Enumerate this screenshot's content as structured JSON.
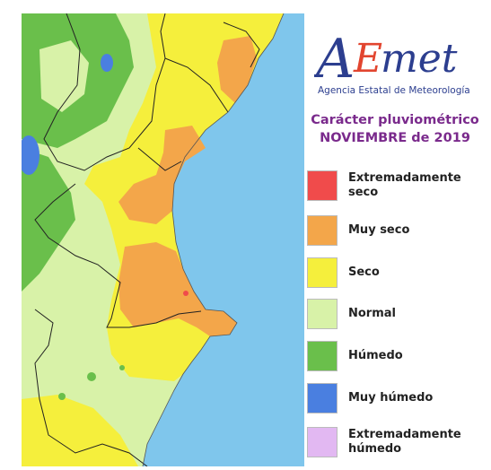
{
  "logo": {
    "letters": [
      "A",
      "E",
      "met"
    ],
    "subtitle": "Agencia Estatal de Meteorología"
  },
  "title_line1": "Carácter pluviométrico",
  "title_line2": "NOVIEMBRE de 2019",
  "legend": [
    {
      "label": "Extremadamente seco",
      "color": "#f04b4b"
    },
    {
      "label": "Muy seco",
      "color": "#f3a64a"
    },
    {
      "label": "Seco",
      "color": "#f5ef3c"
    },
    {
      "label": "Normal",
      "color": "#d8f2a8"
    },
    {
      "label": "Húmedo",
      "color": "#6abf4b"
    },
    {
      "label": "Muy húmedo",
      "color": "#4a7fe0"
    },
    {
      "label": "Extremadamente húmedo",
      "color": "#e2b8f2"
    }
  ],
  "map_colors": {
    "sea": "#7fc6ec",
    "very_dry": "#f3a64a",
    "dry": "#f5ef3c",
    "normal": "#d8f2a8",
    "wet": "#6abf4b",
    "very_wet": "#4a7fe0",
    "extremely_dry": "#f04b4b"
  }
}
